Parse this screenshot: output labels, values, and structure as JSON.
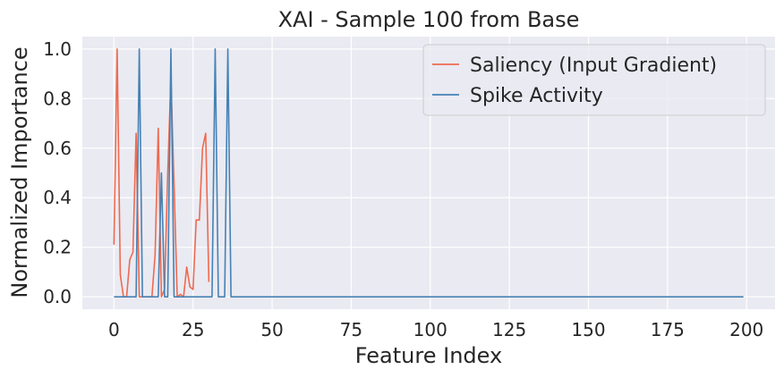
{
  "chart_data": {
    "type": "line",
    "title": "XAI - Sample 100 from Base",
    "xlabel": "Feature Index",
    "ylabel": "Normalized Importance",
    "xlim": [
      -10,
      209
    ],
    "ylim": [
      -0.05,
      1.05
    ],
    "xticks": [
      0,
      25,
      50,
      75,
      100,
      125,
      150,
      175,
      200
    ],
    "xtick_labels": [
      "0",
      "25",
      "50",
      "75",
      "100",
      "125",
      "150",
      "175",
      "200"
    ],
    "yticks": [
      0.0,
      0.2,
      0.4,
      0.6,
      0.8,
      1.0
    ],
    "ytick_labels": [
      "0.0",
      "0.2",
      "0.4",
      "0.6",
      "0.8",
      "1.0"
    ],
    "grid": true,
    "legend_position": "top-right",
    "background": "#eaeaf2",
    "series": [
      {
        "name": "Saliency (Input Gradient)",
        "color": "#ee6a50",
        "x": [
          0,
          1,
          2,
          3,
          4,
          5,
          6,
          7,
          8,
          9,
          10,
          11,
          12,
          13,
          14,
          15,
          16,
          17,
          18,
          19,
          20,
          21,
          22,
          23,
          24,
          25,
          26,
          27,
          28,
          29,
          30
        ],
        "y": [
          0.21,
          1.0,
          0.09,
          0.0,
          0.0,
          0.15,
          0.18,
          0.66,
          0.0,
          0.0,
          0.0,
          0.0,
          0.0,
          0.17,
          0.68,
          0.0,
          0.03,
          0.5,
          0.88,
          0.45,
          0.0,
          0.01,
          0.0,
          0.12,
          0.04,
          0.03,
          0.31,
          0.31,
          0.6,
          0.66,
          0.06
        ]
      },
      {
        "name": "Spike Activity",
        "color": "#4682b4",
        "x": [
          0,
          1,
          2,
          3,
          4,
          5,
          6,
          7,
          8,
          9,
          10,
          11,
          12,
          13,
          14,
          15,
          16,
          17,
          18,
          19,
          20,
          21,
          22,
          23,
          24,
          25,
          26,
          27,
          28,
          29,
          30,
          31,
          32,
          33,
          34,
          35,
          36,
          37,
          38,
          199
        ],
        "y": [
          0,
          0,
          0,
          0,
          0,
          0,
          0,
          0,
          1.0,
          0,
          0,
          0,
          0,
          0,
          0,
          0.5,
          0,
          0,
          1.0,
          0,
          0,
          0,
          0,
          0,
          0,
          0,
          0,
          0,
          0,
          0,
          0,
          0,
          1.0,
          0,
          0,
          0,
          1.0,
          0,
          0,
          0
        ]
      }
    ]
  }
}
